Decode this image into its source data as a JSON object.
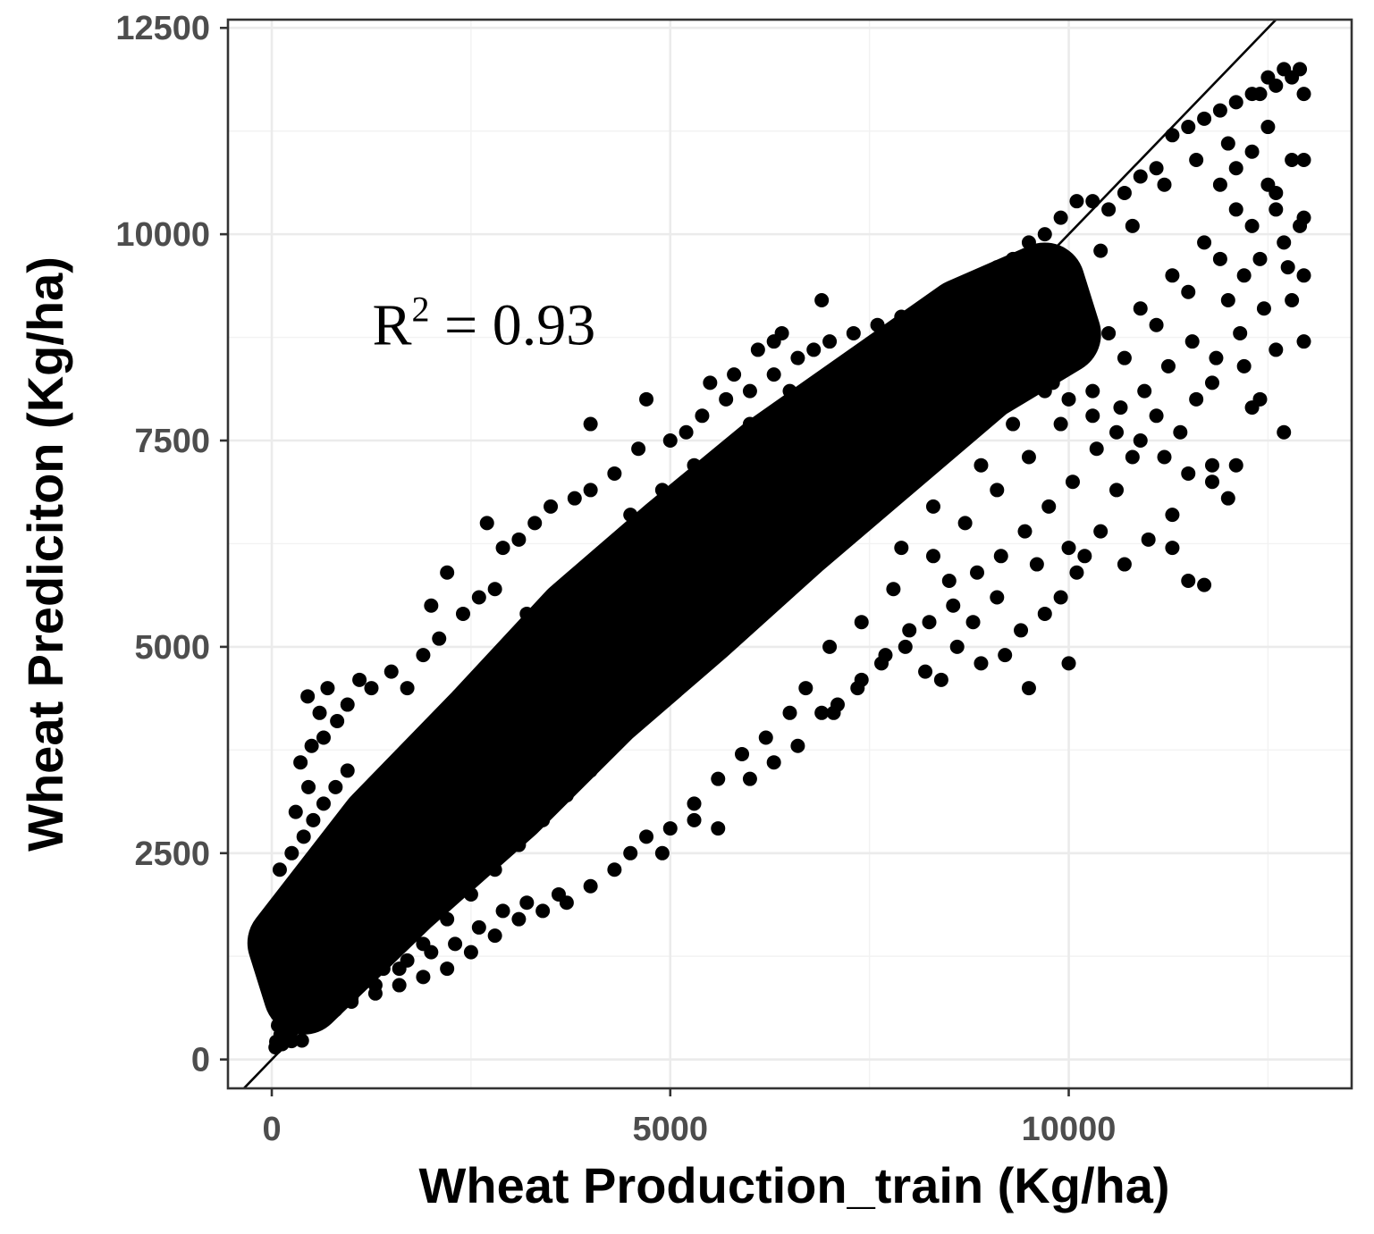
{
  "chart_data": {
    "type": "scatter",
    "title": "",
    "xlabel": "Wheat Production_train (Kg/ha)",
    "ylabel": "Wheat Prediciton (Kg/ha)",
    "xlim": [
      -550,
      13550
    ],
    "ylim": [
      -350,
      12600
    ],
    "x_ticks": [
      0,
      5000,
      10000
    ],
    "x_tick_labels": [
      "0",
      "5000",
      "10000"
    ],
    "y_ticks": [
      0,
      2500,
      5000,
      7500,
      10000,
      12500
    ],
    "y_tick_labels": [
      "0",
      "2500",
      "5000",
      "7500",
      "10000",
      "12500"
    ],
    "grid": true,
    "reference_line": {
      "type": "identity",
      "slope": 1,
      "intercept": 0
    },
    "annotation": {
      "base": "R",
      "superscript": "2",
      "text": " = 0.93",
      "x": 3000,
      "y": 8900
    },
    "point_color": "#000000",
    "dense_cloud": [
      {
        "x": 300,
        "y": 1100
      },
      {
        "x": 1500,
        "y": 2400
      },
      {
        "x": 2800,
        "y": 3600
      },
      {
        "x": 4000,
        "y": 4800
      },
      {
        "x": 5200,
        "y": 5800
      },
      {
        "x": 6400,
        "y": 6800
      },
      {
        "x": 7600,
        "y": 7700
      },
      {
        "x": 8800,
        "y": 8600
      },
      {
        "x": 9800,
        "y": 9100
      }
    ],
    "points": [
      [
        47,
        147
      ],
      [
        56,
        215
      ],
      [
        130,
        186
      ],
      [
        248,
        223
      ],
      [
        378,
        229
      ],
      [
        110,
        300
      ],
      [
        243,
        338
      ],
      [
        78,
        413
      ],
      [
        168,
        432
      ],
      [
        300,
        407
      ],
      [
        410,
        457
      ],
      [
        520,
        480
      ],
      [
        140,
        560
      ],
      [
        340,
        582
      ],
      [
        460,
        660
      ],
      [
        580,
        720
      ],
      [
        70,
        650
      ],
      [
        200,
        760
      ],
      [
        300,
        860
      ],
      [
        500,
        900
      ],
      [
        700,
        880
      ],
      [
        820,
        1010
      ],
      [
        120,
        1000
      ],
      [
        250,
        1100
      ],
      [
        400,
        1200
      ],
      [
        560,
        1300
      ],
      [
        690,
        1150
      ],
      [
        900,
        1250
      ],
      [
        1050,
        1100
      ],
      [
        1200,
        1300
      ],
      [
        160,
        1400
      ],
      [
        330,
        1600
      ],
      [
        520,
        1800
      ],
      [
        700,
        1950
      ],
      [
        950,
        2000
      ],
      [
        1100,
        1700
      ],
      [
        1300,
        1500
      ],
      [
        1400,
        1800
      ],
      [
        90,
        1800
      ],
      [
        230,
        2000
      ],
      [
        420,
        2300
      ],
      [
        600,
        2500
      ],
      [
        780,
        2700
      ],
      [
        100,
        2300
      ],
      [
        250,
        2500
      ],
      [
        400,
        2700
      ],
      [
        520,
        2900
      ],
      [
        650,
        3100
      ],
      [
        800,
        3300
      ],
      [
        950,
        3500
      ],
      [
        300,
        3000
      ],
      [
        460,
        3300
      ],
      [
        360,
        3600
      ],
      [
        500,
        3800
      ],
      [
        650,
        3900
      ],
      [
        820,
        4100
      ],
      [
        950,
        4300
      ],
      [
        1100,
        4600
      ],
      [
        1250,
        4500
      ],
      [
        700,
        4500
      ],
      [
        450,
        4400
      ],
      [
        600,
        4200
      ],
      [
        1500,
        4700
      ],
      [
        1700,
        4500
      ],
      [
        1900,
        4900
      ],
      [
        2000,
        5500
      ],
      [
        2200,
        5900
      ],
      [
        2100,
        5100
      ],
      [
        2400,
        5400
      ],
      [
        2600,
        5600
      ],
      [
        2800,
        5700
      ],
      [
        2900,
        6200
      ],
      [
        2700,
        6500
      ],
      [
        3100,
        6300
      ],
      [
        3300,
        6500
      ],
      [
        3500,
        6700
      ],
      [
        3800,
        6800
      ],
      [
        4000,
        6900
      ],
      [
        4300,
        7100
      ],
      [
        4600,
        7400
      ],
      [
        4700,
        8000
      ],
      [
        5000,
        7500
      ],
      [
        5200,
        7600
      ],
      [
        5400,
        7800
      ],
      [
        5700,
        8000
      ],
      [
        6000,
        8100
      ],
      [
        6300,
        8300
      ],
      [
        6600,
        8500
      ],
      [
        6800,
        8600
      ],
      [
        6400,
        8800
      ],
      [
        6100,
        8600
      ],
      [
        5800,
        8300
      ],
      [
        5500,
        8200
      ],
      [
        7000,
        8700
      ],
      [
        7300,
        8800
      ],
      [
        7600,
        8900
      ],
      [
        7900,
        9000
      ],
      [
        8200,
        9100
      ],
      [
        8500,
        9300
      ],
      [
        8800,
        9400
      ],
      [
        9100,
        9600
      ],
      [
        9300,
        9700
      ],
      [
        9500,
        9900
      ],
      [
        9700,
        10000
      ],
      [
        9900,
        10200
      ],
      [
        10100,
        10400
      ],
      [
        10300,
        10400
      ],
      [
        10500,
        10300
      ],
      [
        10700,
        10500
      ],
      [
        10900,
        10700
      ],
      [
        11100,
        10800
      ],
      [
        11300,
        11200
      ],
      [
        11500,
        11300
      ],
      [
        11700,
        11400
      ],
      [
        11900,
        11500
      ],
      [
        12100,
        11600
      ],
      [
        12300,
        11700
      ],
      [
        12500,
        11900
      ],
      [
        12700,
        12000
      ],
      [
        12900,
        12000
      ],
      [
        12800,
        11900
      ],
      [
        12600,
        11800
      ],
      [
        12400,
        11700
      ],
      [
        12950,
        11700
      ],
      [
        12300,
        11000
      ],
      [
        12100,
        10800
      ],
      [
        11900,
        10600
      ],
      [
        12600,
        10300
      ],
      [
        12900,
        10100
      ],
      [
        12700,
        9900
      ],
      [
        12400,
        9700
      ],
      [
        12200,
        9500
      ],
      [
        12000,
        9200
      ],
      [
        12800,
        9200
      ],
      [
        12950,
        9500
      ],
      [
        12950,
        8700
      ],
      [
        12600,
        8600
      ],
      [
        12200,
        8400
      ],
      [
        11800,
        8200
      ],
      [
        11600,
        8000
      ],
      [
        12400,
        8000
      ],
      [
        12700,
        7600
      ],
      [
        12300,
        7900
      ],
      [
        11400,
        7600
      ],
      [
        11100,
        7800
      ],
      [
        10800,
        7300
      ],
      [
        10600,
        6900
      ],
      [
        10400,
        6400
      ],
      [
        10200,
        6100
      ],
      [
        10100,
        5900
      ],
      [
        9900,
        5600
      ],
      [
        9700,
        5400
      ],
      [
        9400,
        5200
      ],
      [
        9200,
        4900
      ],
      [
        8600,
        5000
      ],
      [
        8400,
        4600
      ],
      [
        8200,
        4700
      ],
      [
        11800,
        7200
      ],
      [
        12000,
        6800
      ],
      [
        11300,
        6600
      ],
      [
        11000,
        6300
      ],
      [
        10700,
        6000
      ],
      [
        11500,
        5800
      ],
      [
        10000,
        6200
      ],
      [
        9600,
        6000
      ],
      [
        9100,
        5600
      ],
      [
        8800,
        5300
      ],
      [
        8500,
        5800
      ],
      [
        8000,
        5200
      ],
      [
        7700,
        4900
      ],
      [
        7400,
        4600
      ],
      [
        7100,
        4300
      ],
      [
        6900,
        4200
      ],
      [
        6700,
        4500
      ],
      [
        6500,
        4200
      ],
      [
        6200,
        3900
      ],
      [
        5900,
        3700
      ],
      [
        5600,
        3400
      ],
      [
        5300,
        3100
      ],
      [
        5000,
        2800
      ],
      [
        4700,
        2700
      ],
      [
        4500,
        2500
      ],
      [
        4300,
        2300
      ],
      [
        4000,
        2100
      ],
      [
        3700,
        1900
      ],
      [
        3400,
        1800
      ],
      [
        3100,
        1700
      ],
      [
        2800,
        1500
      ],
      [
        2500,
        1300
      ],
      [
        2200,
        1100
      ],
      [
        1900,
        1000
      ],
      [
        1600,
        900
      ],
      [
        1300,
        800
      ],
      [
        1000,
        700
      ],
      [
        800,
        600
      ],
      [
        4900,
        2500
      ],
      [
        5600,
        2800
      ],
      [
        5300,
        2900
      ],
      [
        6000,
        3400
      ],
      [
        6300,
        3600
      ],
      [
        6600,
        3800
      ],
      [
        3600,
        2000
      ],
      [
        3200,
        1900
      ],
      [
        2900,
        1800
      ],
      [
        2600,
        1600
      ],
      [
        2300,
        1400
      ],
      [
        2000,
        1300
      ],
      [
        1700,
        1200
      ],
      [
        1400,
        1100
      ],
      [
        1100,
        1000
      ],
      [
        900,
        850
      ],
      [
        3000,
        4400
      ],
      [
        3500,
        5000
      ],
      [
        2500,
        4200
      ],
      [
        2100,
        3700
      ],
      [
        1800,
        3400
      ],
      [
        1500,
        3200
      ],
      [
        1200,
        2900
      ],
      [
        1000,
        2700
      ],
      [
        3200,
        5400
      ],
      [
        3800,
        5600
      ],
      [
        4200,
        6100
      ],
      [
        4500,
        6600
      ],
      [
        4900,
        6900
      ],
      [
        5300,
        7200
      ],
      [
        6000,
        7700
      ],
      [
        6500,
        8100
      ],
      [
        7000,
        8200
      ],
      [
        7500,
        8400
      ],
      [
        8000,
        8800
      ],
      [
        8400,
        9000
      ],
      [
        8700,
        9200
      ],
      [
        9000,
        9000
      ],
      [
        9200,
        8800
      ],
      [
        9500,
        8400
      ],
      [
        9800,
        8200
      ],
      [
        10000,
        8000
      ],
      [
        10300,
        7800
      ],
      [
        10600,
        7600
      ],
      [
        10900,
        7500
      ],
      [
        11200,
        7300
      ],
      [
        11500,
        7100
      ],
      [
        11800,
        7000
      ],
      [
        12100,
        7200
      ],
      [
        8800,
        8300
      ],
      [
        8500,
        8000
      ],
      [
        8200,
        7700
      ],
      [
        7900,
        7400
      ],
      [
        7600,
        7100
      ],
      [
        7300,
        6800
      ],
      [
        7000,
        6500
      ],
      [
        6700,
        6200
      ],
      [
        6400,
        5900
      ],
      [
        6100,
        5600
      ],
      [
        5800,
        5300
      ],
      [
        5500,
        5000
      ],
      [
        5200,
        4700
      ],
      [
        4900,
        4400
      ],
      [
        4600,
        4100
      ],
      [
        4300,
        3800
      ],
      [
        4000,
        3500
      ],
      [
        3700,
        3200
      ],
      [
        3400,
        2900
      ],
      [
        3100,
        2600
      ],
      [
        2800,
        2300
      ],
      [
        2500,
        2000
      ],
      [
        2200,
        1700
      ],
      [
        1900,
        1400
      ],
      [
        1600,
        1100
      ],
      [
        1300,
        900
      ],
      [
        1000,
        750
      ],
      [
        6900,
        9200
      ],
      [
        6300,
        8700
      ],
      [
        4000,
        7700
      ],
      [
        11700,
        5750
      ],
      [
        11300,
        6200
      ],
      [
        10000,
        4800
      ],
      [
        9500,
        4500
      ],
      [
        8900,
        4800
      ],
      [
        7000,
        5000
      ],
      [
        7400,
        5300
      ],
      [
        7800,
        5700
      ],
      [
        8300,
        6100
      ],
      [
        8700,
        6500
      ],
      [
        9100,
        6900
      ],
      [
        9500,
        7300
      ],
      [
        9900,
        7700
      ],
      [
        10300,
        8100
      ],
      [
        10700,
        8500
      ],
      [
        11100,
        8900
      ],
      [
        11500,
        9300
      ],
      [
        11900,
        9700
      ],
      [
        12300,
        10100
      ],
      [
        12600,
        10500
      ],
      [
        12800,
        10900
      ],
      [
        12500,
        11300
      ],
      [
        12000,
        11100
      ],
      [
        11600,
        10900
      ],
      [
        11200,
        10600
      ],
      [
        10800,
        10100
      ],
      [
        10400,
        9800
      ],
      [
        10000,
        9500
      ],
      [
        9600,
        9300
      ],
      [
        9200,
        9000
      ],
      [
        7200,
        7800
      ],
      [
        6800,
        7600
      ],
      [
        6400,
        7300
      ],
      [
        6000,
        7000
      ],
      [
        5600,
        6700
      ],
      [
        5200,
        6300
      ],
      [
        4800,
        5900
      ],
      [
        4400,
        5500
      ],
      [
        4000,
        5100
      ],
      [
        3600,
        4700
      ],
      [
        3200,
        4300
      ],
      [
        2800,
        3900
      ],
      [
        2400,
        3500
      ],
      [
        2000,
        3100
      ],
      [
        1600,
        2700
      ],
      [
        1200,
        2300
      ],
      [
        800,
        1900
      ],
      [
        600,
        1500
      ],
      [
        400,
        1100
      ],
      [
        200,
        800
      ],
      [
        7900,
        6200
      ],
      [
        8300,
        6700
      ],
      [
        8900,
        7200
      ],
      [
        9300,
        7700
      ],
      [
        9700,
        8100
      ],
      [
        10100,
        8500
      ],
      [
        10500,
        8800
      ],
      [
        10900,
        9100
      ],
      [
        11300,
        9500
      ],
      [
        11700,
        9900
      ],
      [
        12100,
        10300
      ],
      [
        12500,
        10600
      ],
      [
        12950,
        10900
      ],
      [
        12950,
        10200
      ],
      [
        12750,
        9600
      ],
      [
        12450,
        9100
      ],
      [
        12150,
        8800
      ],
      [
        11850,
        8500
      ],
      [
        11550,
        8700
      ],
      [
        11250,
        8400
      ],
      [
        10950,
        8100
      ],
      [
        10650,
        7900
      ],
      [
        10350,
        7400
      ],
      [
        10050,
        7000
      ],
      [
        9750,
        6700
      ],
      [
        9450,
        6400
      ],
      [
        9150,
        6100
      ],
      [
        8850,
        5900
      ],
      [
        8550,
        5500
      ],
      [
        8250,
        5300
      ],
      [
        7950,
        5000
      ],
      [
        7650,
        4800
      ],
      [
        7350,
        4500
      ],
      [
        7050,
        4200
      ]
    ]
  }
}
